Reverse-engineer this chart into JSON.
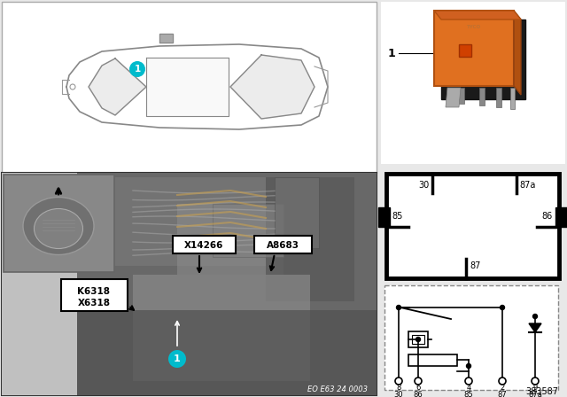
{
  "bg_color": "#e8e8e8",
  "car_box_bg": "#ffffff",
  "car_box_border": "#aaaaaa",
  "car_line_color": "#888888",
  "cyan_color": "#00BBCC",
  "photo_bg": "#888888",
  "relay_orange": "#E07020",
  "relay_dark": "#1a1a1a",
  "relay_metal": "#999999",
  "pin_box_border": "#000000",
  "circuit_border": "#aaaaaa",
  "eo_text": "EO E63 24 0003",
  "part_number": "383587",
  "label_k": "K6318",
  "label_x": "X6318",
  "label_x14266": "X14266",
  "label_a8683": "A8683"
}
